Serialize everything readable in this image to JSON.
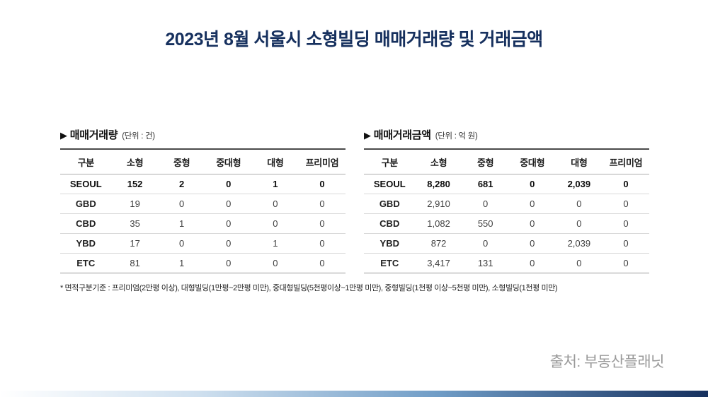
{
  "title": "2023년 8월 서울시 소형빌딩 매매거래량 및 거래금액",
  "chart_data": [
    {
      "type": "table",
      "title": "매매거래량",
      "unit_label": "(단위 : 건)",
      "columns": [
        "구분",
        "소형",
        "중형",
        "중대형",
        "대형",
        "프리미엄"
      ],
      "rows": [
        {
          "label": "SEOUL",
          "values": [
            "152",
            "2",
            "0",
            "1",
            "0"
          ],
          "emphasis": true
        },
        {
          "label": "GBD",
          "values": [
            "19",
            "0",
            "0",
            "0",
            "0"
          ],
          "emphasis": false
        },
        {
          "label": "CBD",
          "values": [
            "35",
            "1",
            "0",
            "0",
            "0"
          ],
          "emphasis": false
        },
        {
          "label": "YBD",
          "values": [
            "17",
            "0",
            "0",
            "1",
            "0"
          ],
          "emphasis": false
        },
        {
          "label": "ETC",
          "values": [
            "81",
            "1",
            "0",
            "0",
            "0"
          ],
          "emphasis": false
        }
      ]
    },
    {
      "type": "table",
      "title": "매매거래금액",
      "unit_label": "(단위 : 억 원)",
      "columns": [
        "구분",
        "소형",
        "중형",
        "중대형",
        "대형",
        "프리미엄"
      ],
      "rows": [
        {
          "label": "SEOUL",
          "values": [
            "8,280",
            "681",
            "0",
            "2,039",
            "0"
          ],
          "emphasis": true
        },
        {
          "label": "GBD",
          "values": [
            "2,910",
            "0",
            "0",
            "0",
            "0"
          ],
          "emphasis": false
        },
        {
          "label": "CBD",
          "values": [
            "1,082",
            "550",
            "0",
            "0",
            "0"
          ],
          "emphasis": false
        },
        {
          "label": "YBD",
          "values": [
            "872",
            "0",
            "0",
            "2,039",
            "0"
          ],
          "emphasis": false
        },
        {
          "label": "ETC",
          "values": [
            "3,417",
            "131",
            "0",
            "0",
            "0"
          ],
          "emphasis": false
        }
      ]
    }
  ],
  "arrow_glyph": "▶",
  "footnote": "* 면적구분기준 : 프리미엄(2만평 이상), 대형빌딩(1만평~2만평 미만), 중대형빌딩(5천평이상~1만평 미만), 중형빌딩(1천평 이상~5천평 미만), 소형빌딩(1천평 미만)",
  "source": "출처: 부동산플래닛",
  "colors": {
    "title": "#16305e",
    "gradient_end": "#16305e"
  }
}
